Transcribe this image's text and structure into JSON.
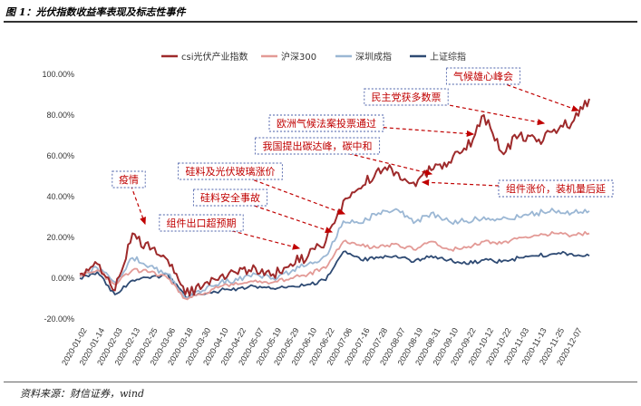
{
  "figure": {
    "title": "图 1：光伏指数收益率表现及标志性事件",
    "source": "资料来源：财信证券，wind"
  },
  "colors": {
    "csi": "#9e2a2b",
    "hs300": "#e39a96",
    "shenzhen": "#9bb7d4",
    "shanghai": "#2e4a73",
    "annotation": "#c00000"
  },
  "chart_data": {
    "type": "line",
    "title": "",
    "xlabel": "",
    "ylabel": "",
    "ylim": [
      -20,
      100
    ],
    "yticks": [
      "-20.00%",
      "0.00%",
      "20.00%",
      "40.00%",
      "60.00%",
      "80.00%",
      "100.00%"
    ],
    "grid": false,
    "legend_position": "top",
    "xtick_labels": [
      "2020-01-02",
      "2020-01-14",
      "2020-02-03",
      "2020-02-13",
      "2020-02-25",
      "2020-03-06",
      "2020-03-18",
      "2020-03-30",
      "2020-04-10",
      "2020-04-22",
      "2020-05-07",
      "2020-05-19",
      "2020-05-29",
      "2020-06-10",
      "2020-06-22",
      "2020-07-06",
      "2020-07-16",
      "2020-07-28",
      "2020-08-07",
      "2020-08-19",
      "2020-08-31",
      "2020-09-10",
      "2020-09-22",
      "2020-10-12",
      "2020-10-22",
      "2020-11-03",
      "2020-11-13",
      "2020-11-25",
      "2020-12-07"
    ],
    "x": [
      "2020-01-02",
      "2020-01-14",
      "2020-02-03",
      "2020-02-13",
      "2020-02-25",
      "2020-03-06",
      "2020-03-18",
      "2020-03-30",
      "2020-04-10",
      "2020-04-22",
      "2020-05-07",
      "2020-05-19",
      "2020-05-29",
      "2020-06-10",
      "2020-06-22",
      "2020-07-06",
      "2020-07-16",
      "2020-07-28",
      "2020-08-07",
      "2020-08-19",
      "2020-08-31",
      "2020-09-10",
      "2020-09-22",
      "2020-10-12",
      "2020-10-22",
      "2020-11-03",
      "2020-11-13",
      "2020-11-25",
      "2020-12-07",
      "2020-12-18"
    ],
    "series": [
      {
        "name": "csi光伏产业指数",
        "color_key": "csi",
        "values": [
          2,
          7,
          -6,
          22,
          14,
          9,
          -8,
          -4,
          1,
          2,
          5,
          2,
          7,
          11,
          18,
          38,
          44,
          54,
          52,
          47,
          53,
          57,
          63,
          80,
          62,
          70,
          67,
          73,
          76,
          88
        ]
      },
      {
        "name": "沪深300",
        "color_key": "hs300",
        "values": [
          1,
          4,
          -3,
          4,
          3,
          0,
          -10,
          -8,
          -4,
          -3,
          -1,
          -2,
          0,
          2,
          5,
          18,
          16,
          15,
          17,
          14,
          18,
          14,
          15,
          18,
          17,
          20,
          21,
          22,
          21,
          22
        ]
      },
      {
        "name": "深圳成指",
        "color_key": "shenzhen",
        "values": [
          1,
          5,
          -2,
          10,
          6,
          2,
          -10,
          -6,
          -2,
          -1,
          2,
          0,
          3,
          7,
          11,
          28,
          27,
          32,
          34,
          27,
          32,
          28,
          28,
          30,
          29,
          30,
          32,
          33,
          32,
          33
        ]
      },
      {
        "name": "上证综指",
        "color_key": "shanghai",
        "values": [
          0,
          3,
          -8,
          -1,
          0,
          2,
          -9,
          -8,
          -6,
          -5,
          -4,
          -5,
          -4,
          -3,
          -1,
          13,
          9,
          10,
          11,
          8,
          11,
          9,
          7,
          9,
          8,
          10,
          11,
          12,
          12,
          11
        ]
      }
    ],
    "annotations": [
      {
        "text": "疫情",
        "arrow_to": "2020-02-25"
      },
      {
        "text": "组件出口超预期",
        "arrow_to": "2020-06-10"
      },
      {
        "text": "硅料安全事故",
        "arrow_to": "2020-07-06"
      },
      {
        "text": "硅料及光伏玻璃涨价",
        "arrow_to": "2020-07-06"
      },
      {
        "text": "我国提出碳达峰，碳中和",
        "arrow_to": "2020-09-22"
      },
      {
        "text": "欧洲气候法案投票通过",
        "arrow_to": "2020-10-12"
      },
      {
        "text": "民主党获多数票",
        "arrow_to": "2020-11-13"
      },
      {
        "text": "气候雄心峰会",
        "arrow_to": "2020-12-18"
      },
      {
        "text": "组件涨价，装机量后延",
        "arrow_to": "2020-09-10"
      }
    ]
  }
}
